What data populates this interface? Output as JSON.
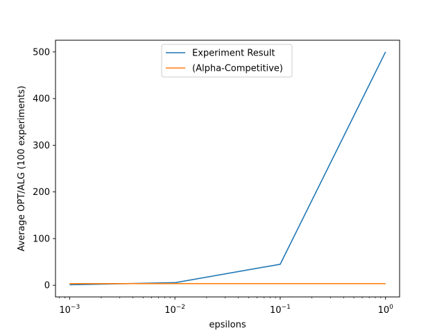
{
  "chart_data": {
    "type": "line",
    "title": "",
    "xlabel": "epsilons",
    "ylabel": "Average OPT/ALG (100 experiments)",
    "xscale": "log",
    "xlim": [
      0.000735,
      1.36
    ],
    "ylim": [
      -25,
      525
    ],
    "x": [
      0.001,
      0.01,
      0.1,
      1
    ],
    "xticks": [
      0.001,
      0.01,
      0.1,
      1
    ],
    "xtick_labels": [
      {
        "base": "10",
        "exp": "−3"
      },
      {
        "base": "10",
        "exp": "−2"
      },
      {
        "base": "10",
        "exp": "−1"
      },
      {
        "base": "10",
        "exp": "0"
      }
    ],
    "yticks": [
      0,
      100,
      200,
      300,
      400,
      500
    ],
    "ytick_labels": [
      "0",
      "100",
      "200",
      "300",
      "400",
      "500"
    ],
    "series": [
      {
        "name": "Experiment Result",
        "color": "#1f77b4",
        "values": [
          1,
          5.5,
          45,
          500
        ]
      },
      {
        "name": "(Alpha-Competitive)",
        "color": "#ff7f0e",
        "values": [
          3.5,
          3.5,
          3.5,
          3.5
        ]
      }
    ],
    "legend_position": "upper-center"
  }
}
